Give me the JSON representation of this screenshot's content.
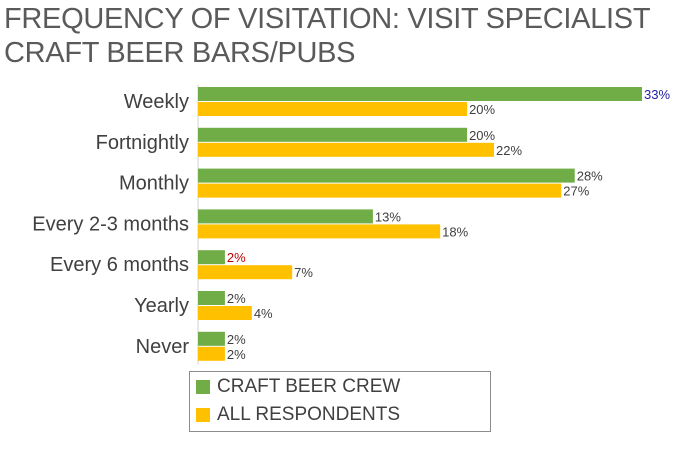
{
  "title": "FREQUENCY OF VISITATION: VISIT SPECIALIST CRAFT BEER BARS/PUBS",
  "colors": {
    "craft_beer_crew": "#70ad47",
    "all_respondents": "#ffc000",
    "highlight_high": "#1f1fa8",
    "highlight_low": "#c00000",
    "label_default": "#404040"
  },
  "legend": {
    "items": [
      {
        "label": "CRAFT BEER CREW",
        "color": "#70ad47"
      },
      {
        "label": "ALL RESPONDENTS",
        "color": "#ffc000"
      }
    ],
    "placement": "bottom"
  },
  "chart_data": {
    "type": "bar",
    "orientation": "horizontal",
    "title": "FREQUENCY OF VISITATION: VISIT SPECIALIST CRAFT BEER BARS/PUBS",
    "categories": [
      "Weekly",
      "Fortnightly",
      "Monthly",
      "Every 2-3 months",
      "Every 6 months",
      "Yearly",
      "Never"
    ],
    "series": [
      {
        "name": "CRAFT BEER CREW",
        "values": [
          33,
          20,
          28,
          13,
          2,
          2,
          2
        ],
        "labels": [
          "33%",
          "20%",
          "28%",
          "13%",
          "2%",
          "2%",
          "2%"
        ],
        "color": "#70ad47"
      },
      {
        "name": "ALL RESPONDENTS",
        "values": [
          20,
          22,
          27,
          18,
          7,
          4,
          2
        ],
        "labels": [
          "20%",
          "22%",
          "27%",
          "18%",
          "7%",
          "4%",
          "2%"
        ],
        "color": "#ffc000"
      }
    ],
    "label_highlights": {
      "0-0": "#1f1fa8",
      "0-4": "#c00000"
    },
    "xlim": [
      0,
      33
    ],
    "grid": false,
    "legend": "bottom"
  }
}
